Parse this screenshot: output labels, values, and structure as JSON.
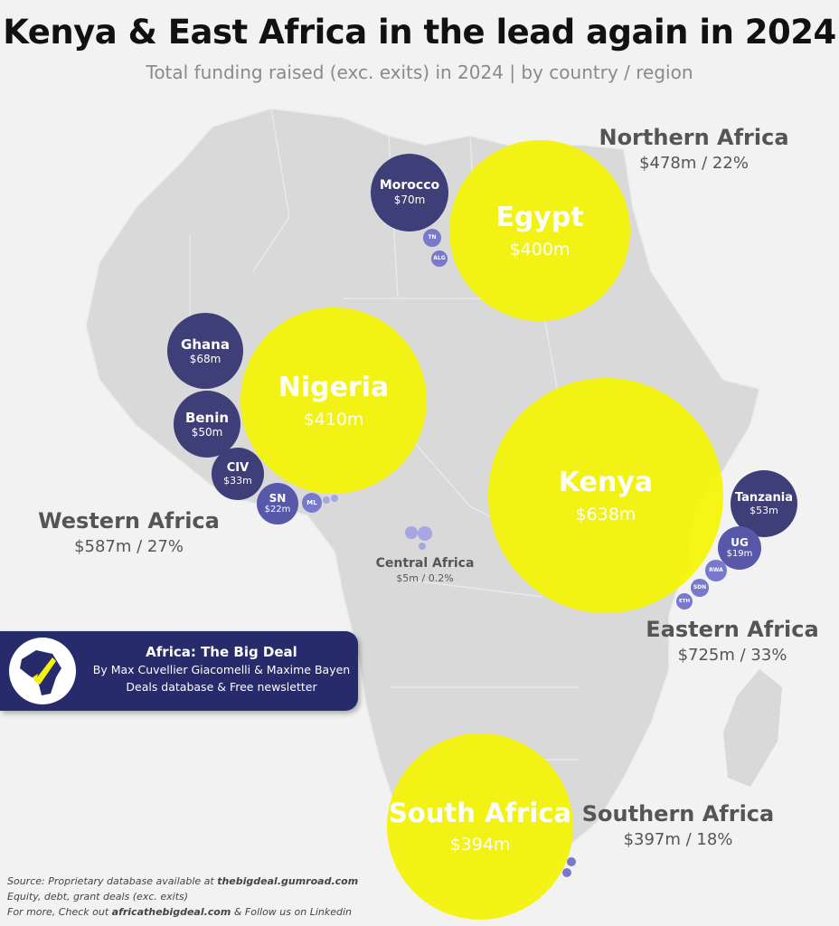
{
  "title": "Kenya & East Africa in the lead again in 2024",
  "subtitle": "Total funding raised (exc. exits) in 2024 | by country / region",
  "colors": {
    "big_bubble": "#f4f40a",
    "dark_bubble": "#3e3e78",
    "mid_bubble": "#5858aa",
    "small_bubble": "#7878cc",
    "map_land": "#d9d9d9",
    "banner": "#272a6b"
  },
  "regions": {
    "northern": {
      "name": "Northern Africa",
      "value": "$478m / 22%"
    },
    "western": {
      "name": "Western Africa",
      "value": "$587m / 27%"
    },
    "central": {
      "name": "Central Africa",
      "value": "$5m / 0.2%"
    },
    "eastern": {
      "name": "Eastern Africa",
      "value": "$725m / 33%"
    },
    "southern": {
      "name": "Southern Africa",
      "value": "$397m / 18%"
    }
  },
  "countries": {
    "egypt": {
      "name": "Egypt",
      "value": "$400m"
    },
    "morocco": {
      "name": "Morocco",
      "value": "$70m"
    },
    "tn": {
      "name": "TN"
    },
    "alg": {
      "name": "ALG"
    },
    "nigeria": {
      "name": "Nigeria",
      "value": "$410m"
    },
    "ghana": {
      "name": "Ghana",
      "value": "$68m"
    },
    "benin": {
      "name": "Benin",
      "value": "$50m"
    },
    "civ": {
      "name": "CIV",
      "value": "$33m"
    },
    "sn": {
      "name": "SN",
      "value": "$22m"
    },
    "ml": {
      "name": "ML"
    },
    "kenya": {
      "name": "Kenya",
      "value": "$638m"
    },
    "tanzania": {
      "name": "Tanzania",
      "value": "$53m"
    },
    "ug": {
      "name": "UG",
      "value": "$19m"
    },
    "rwa": {
      "name": "RWA"
    },
    "sdn": {
      "name": "SDN"
    },
    "eth": {
      "name": "ETH"
    },
    "south_africa": {
      "name": "South Africa",
      "value": "$394m"
    }
  },
  "banner": {
    "title": "Africa: The Big Deal",
    "authors": "By Max Cuvellier Giacomelli & Maxime Bayen",
    "tagline": "Deals database & Free newsletter",
    "logo_icon": "africa-rocket-logo"
  },
  "source": {
    "line1_prefix": "Source: Proprietary database available at ",
    "line1_link": "thebigdeal.gumroad.com",
    "line2": "Equity, debt, grant deals (exc. exits)",
    "line3_prefix": "For more, Check out ",
    "line3_link": "africathebigdeal.com",
    "line3_suffix": " & Follow us on Linkedin"
  }
}
